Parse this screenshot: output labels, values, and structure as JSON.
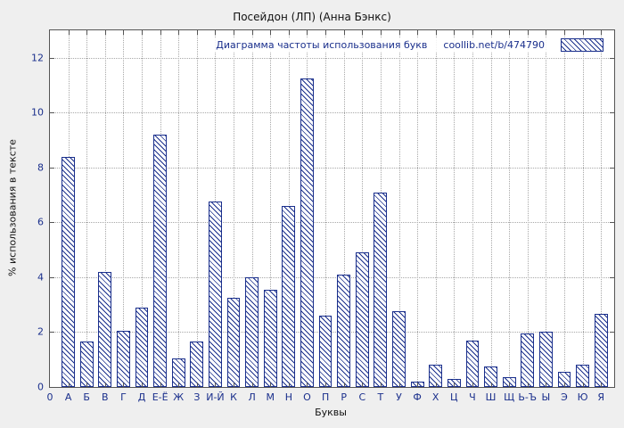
{
  "title": "Посейдон (ЛП) (Анна Бэнкс)",
  "legend": {
    "label": "Диаграмма частоты использования букв",
    "source": "coollib.net/b/474790"
  },
  "axes": {
    "ylabel": "% использования в тексте",
    "xlabel": "Буквы",
    "origin_label": "0",
    "yticks": [
      0,
      2,
      4,
      6,
      8,
      10,
      12
    ]
  },
  "colors": {
    "accent": "#1a2f8c",
    "grid": "#a8a8a8",
    "frame": "#555555",
    "background": "#efefef",
    "plot_background": "#ffffff"
  },
  "chart_data": {
    "type": "bar",
    "title": "Посейдон (ЛП) (Анна Бэнкс)",
    "xlabel": "Буквы",
    "ylabel": "% использования в тексте",
    "ylim": [
      0,
      13
    ],
    "grid": true,
    "legend_position": "top-right-inside",
    "categories": [
      "А",
      "Б",
      "В",
      "Г",
      "Д",
      "Е-Ё",
      "Ж",
      "З",
      "И-Й",
      "К",
      "Л",
      "М",
      "Н",
      "О",
      "П",
      "Р",
      "С",
      "Т",
      "У",
      "Ф",
      "Х",
      "Ц",
      "Ч",
      "Ш",
      "Щ",
      "Ь-Ъ",
      "Ы",
      "Э",
      "Ю",
      "Я"
    ],
    "values": [
      8.4,
      1.65,
      4.2,
      2.05,
      2.9,
      9.2,
      1.05,
      1.65,
      6.75,
      3.25,
      4.0,
      3.55,
      6.6,
      11.25,
      2.6,
      4.1,
      4.9,
      7.1,
      2.75,
      0.2,
      0.8,
      0.3,
      1.7,
      0.75,
      0.35,
      1.95,
      2.0,
      0.55,
      0.8,
      2.65
    ]
  }
}
